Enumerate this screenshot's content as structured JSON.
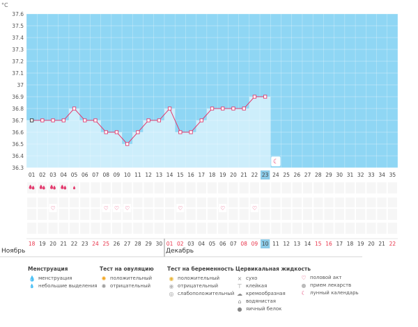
{
  "header": {
    "unit": "°C"
  },
  "months": {
    "left": "Ноябрь",
    "right": "Декабрь"
  },
  "chart_data": {
    "type": "line",
    "ylabel": "°C",
    "ylim": [
      36.3,
      37.6
    ],
    "y_ticks": [
      "36.3",
      "36.4",
      "36.5",
      "36.6",
      "36.7",
      "36.8",
      "36.9",
      "37",
      "37.1",
      "37.2",
      "37.3",
      "37.4",
      "37.5",
      "37.6"
    ],
    "cycle_days": [
      "01",
      "02",
      "03",
      "04",
      "05",
      "06",
      "07",
      "08",
      "09",
      "10",
      "11",
      "12",
      "13",
      "14",
      "15",
      "16",
      "17",
      "18",
      "19",
      "20",
      "21",
      "22",
      "23",
      "24",
      "25",
      "26",
      "27",
      "28",
      "29",
      "30",
      "31",
      "32",
      "33",
      "34",
      "35"
    ],
    "temperatures": [
      36.7,
      36.7,
      36.7,
      36.7,
      36.8,
      36.7,
      36.7,
      36.6,
      36.6,
      36.5,
      36.6,
      36.7,
      36.7,
      36.8,
      36.6,
      36.6,
      36.7,
      36.8,
      36.8,
      36.8,
      36.8,
      36.9,
      36.9
    ],
    "current_day": "23",
    "calendar_dates": [
      "18",
      "19",
      "20",
      "21",
      "22",
      "23",
      "24",
      "25",
      "26",
      "27",
      "28",
      "29",
      "30",
      "01",
      "02",
      "03",
      "04",
      "05",
      "06",
      "07",
      "08",
      "09",
      "10",
      "11",
      "12",
      "13",
      "14",
      "15",
      "16",
      "17",
      "18",
      "19",
      "20",
      "21",
      "22"
    ],
    "weekend_indices": [
      0,
      6,
      7,
      13,
      14,
      20,
      21,
      27,
      28,
      34
    ],
    "today_date_index": 22,
    "menstruation_days": [
      0,
      1,
      2,
      3
    ],
    "spotting_days": [
      4
    ],
    "intercourse_days": [
      2,
      7,
      8,
      9,
      14,
      18,
      21
    ],
    "lunar_day": 23,
    "colors": {
      "grid_bg": "#8fd6f4",
      "fill_bg": "#cdeefb",
      "line": "#e33b6e",
      "marker_border": "#e33b6e",
      "weekend": "#e8334a",
      "today_bg": "#8ccbe8"
    }
  },
  "legend": {
    "menstruation": {
      "title": "Менструация",
      "items": [
        "менструация",
        "небольшие выделения"
      ]
    },
    "ovulation": {
      "title": "Тест на овуляцию",
      "items": [
        "положительный",
        "отрицательный"
      ]
    },
    "pregnancy": {
      "title": "Тест на беременность",
      "items": [
        "положительный",
        "отрицательный",
        "слабоположительный"
      ]
    },
    "cervical": {
      "title": "Цервикальная жидкость",
      "items": [
        "сухо",
        "клейкая",
        "кремообразная",
        "водянистая",
        "яичный белок"
      ]
    },
    "other": {
      "items": [
        "половой акт",
        "прием лекарств",
        "лунный календарь"
      ]
    }
  }
}
